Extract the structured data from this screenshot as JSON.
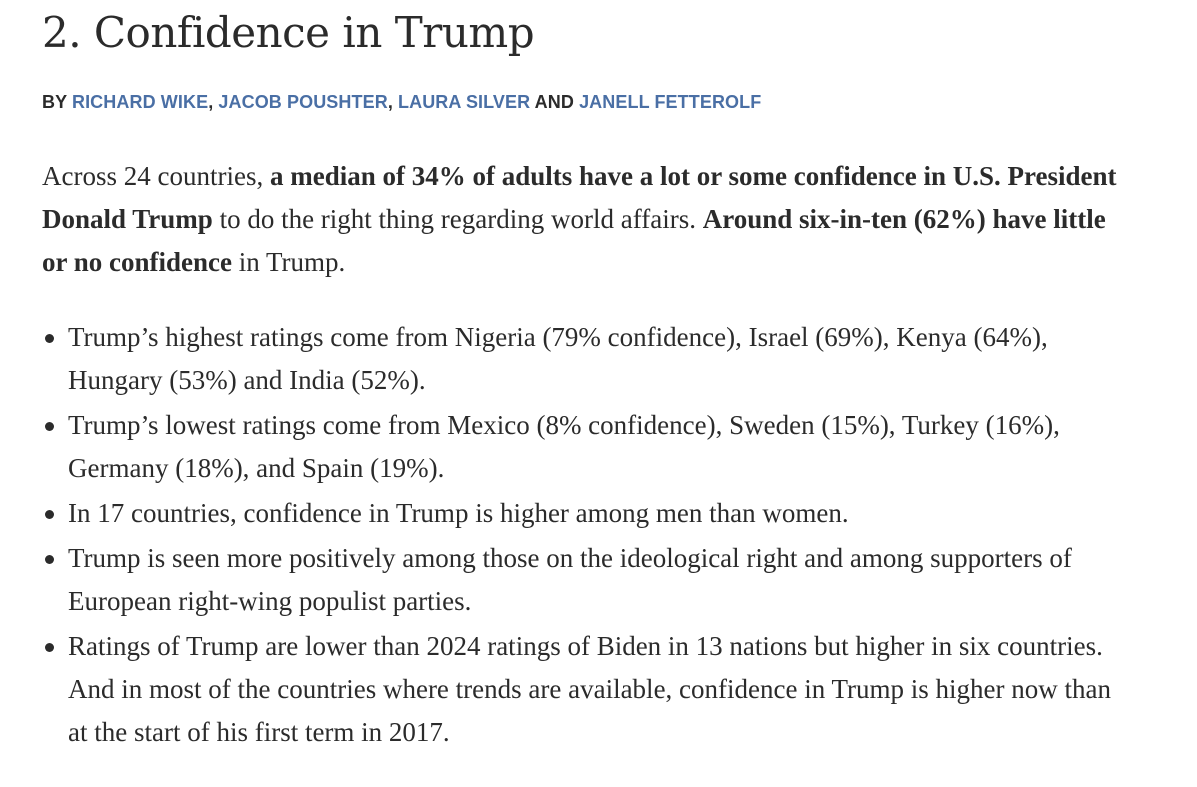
{
  "article": {
    "title": "2. Confidence in Trump",
    "byline": {
      "prefix": "BY ",
      "authors": [
        "RICHARD WIKE",
        "JACOB POUSHTER",
        "LAURA SILVER",
        "JANELL FETTEROLF"
      ],
      "sep1": ", ",
      "sep2": ", ",
      "and": " AND "
    },
    "lede": {
      "part1": "Across 24 countries, ",
      "bold1": "a median of 34% of adults have a lot or some confidence in U.S. President Donald Trump",
      "part2": " to do the right thing regarding world affairs. ",
      "bold2": "Around six-in-ten (62%) have little or no confidence",
      "part3": " in Trump."
    },
    "bullets": [
      "Trump’s highest ratings come from Nigeria (79% confidence), Israel (69%), Kenya (64%), Hungary (53%) and India (52%).",
      "Trump’s lowest ratings come from Mexico (8% confidence), Sweden (15%), Turkey (16%), Germany (18%), and Spain (19%).",
      "In 17 countries, confidence in Trump is higher among men than women.",
      "Trump is seen more positively among those on the ideological right and among supporters of European right-wing populist parties.",
      "Ratings of Trump are lower than 2024 ratings of Biden in 13 nations but higher in six countries. And in most of the countries where trends are available, confidence in Trump is higher now than at the start of his first term in 2017."
    ]
  },
  "colors": {
    "link": "#4a6fa5",
    "text": "#2b2b2b"
  }
}
